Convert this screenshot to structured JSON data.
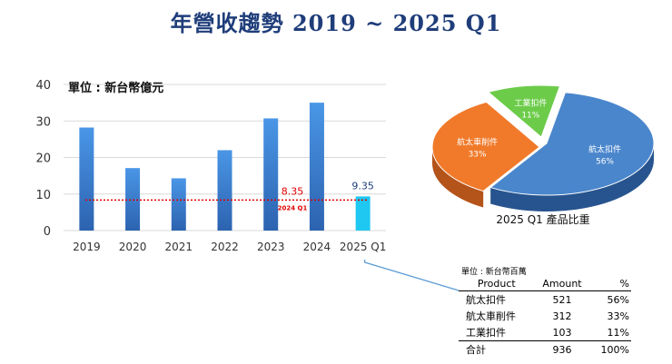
{
  "title": "年營收趨勢  2019 ~ 2025 Q1",
  "colors": {
    "bar": "#3a7fcf",
    "bar_last": "#1ec8f0",
    "ref_line": "#e00000",
    "pie_blue": "#4a86cc",
    "pie_orange": "#f07a2a",
    "pie_green": "#6ccc4a",
    "connector": "#5b9bd5"
  },
  "chart_data": [
    {
      "type": "bar",
      "unit_label": "單位 : 新台幣億元",
      "categories": [
        "2019",
        "2020",
        "2021",
        "2022",
        "2023",
        "2024",
        "2025 Q1"
      ],
      "values": [
        28.2,
        17.1,
        14.3,
        22.0,
        30.7,
        35.0,
        9.35
      ],
      "ylim": [
        0,
        40
      ],
      "yticks": [
        0,
        10,
        20,
        30,
        40
      ],
      "grid": true,
      "last_bar_label": "9.35",
      "reference_line": {
        "value": 8.35,
        "label": "8.35",
        "sublabel": "2024 Q1"
      }
    },
    {
      "type": "pie",
      "title": "2025 Q1 產品比重",
      "labels": [
        "航太扣件",
        "航太車削件",
        "工業扣件"
      ],
      "values": [
        56,
        33,
        11
      ],
      "value_labels": [
        "56%",
        "33%",
        "11%"
      ]
    },
    {
      "type": "table",
      "unit": "單位 : 新台幣百萬",
      "headers": [
        "Product",
        "Amount",
        "%"
      ],
      "rows": [
        [
          "航太扣件",
          "521",
          "56%"
        ],
        [
          "航太車削件",
          "312",
          "33%"
        ],
        [
          "工業扣件",
          "103",
          "11%"
        ]
      ],
      "total": [
        "合計",
        "936",
        "100%"
      ]
    }
  ]
}
